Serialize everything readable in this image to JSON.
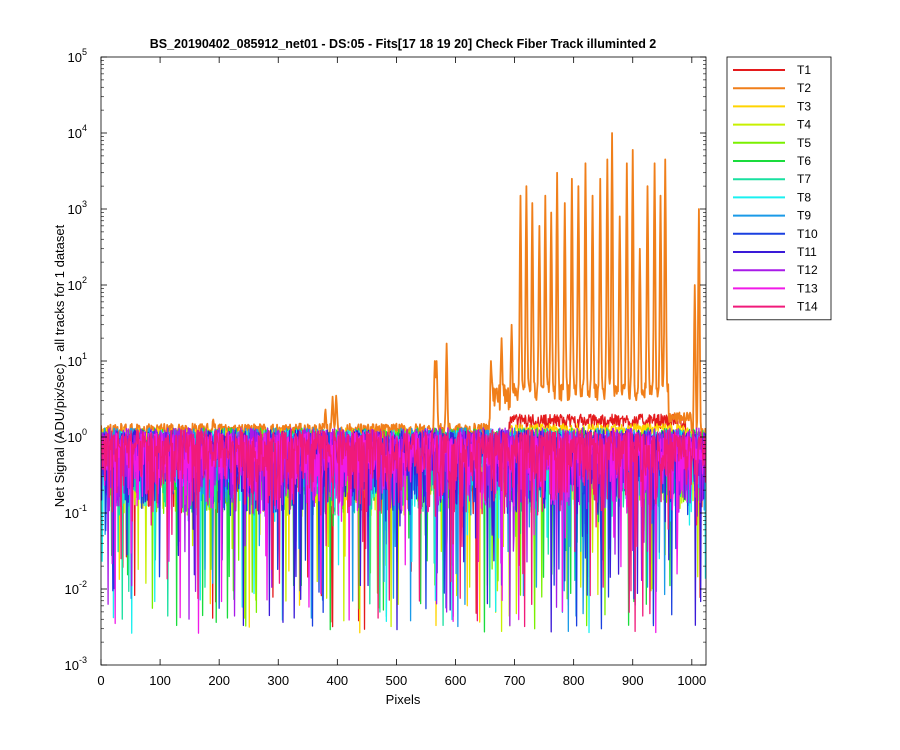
{
  "chart_data": {
    "type": "line",
    "title": "BS_20190402_085912_net01 - DS:05 - Fits[17  18  19  20]   Check Fiber     Track illuminted 2",
    "xlabel": "Pixels",
    "ylabel": "Net Signal (ADU/pix/sec) - all tracks for 1 dataset",
    "xlim": [
      0,
      1024
    ],
    "ylim": [
      0.001,
      100000
    ],
    "y_scale": "log",
    "grid": false,
    "legend_position": "outside-top-right",
    "x_ticks": [
      0,
      100,
      200,
      300,
      400,
      500,
      600,
      700,
      800,
      900,
      1000
    ],
    "y_ticks": [
      {
        "base": "10",
        "exp": "-3",
        "value": 0.001
      },
      {
        "base": "10",
        "exp": "-2",
        "value": 0.01
      },
      {
        "base": "10",
        "exp": "-1",
        "value": 0.1
      },
      {
        "base": "10",
        "exp": "0",
        "value": 1
      },
      {
        "base": "10",
        "exp": "1",
        "value": 10
      },
      {
        "base": "10",
        "exp": "2",
        "value": 100
      },
      {
        "base": "10",
        "exp": "3",
        "value": 1000
      },
      {
        "base": "10",
        "exp": "4",
        "value": 10000
      },
      {
        "base": "10",
        "exp": "5",
        "value": 100000
      }
    ],
    "series": [
      {
        "name": "T1",
        "color": "#e41a1c"
      },
      {
        "name": "T2",
        "color": "#f07f1a",
        "peaks": [
          {
            "x": 190,
            "y": 1.7
          },
          {
            "x": 380,
            "y": 2.3
          },
          {
            "x": 392,
            "y": 3.4
          },
          {
            "x": 398,
            "y": 3.5
          },
          {
            "x": 565,
            "y": 10
          },
          {
            "x": 568,
            "y": 10
          },
          {
            "x": 585,
            "y": 17
          },
          {
            "x": 660,
            "y": 10
          },
          {
            "x": 678,
            "y": 20
          },
          {
            "x": 695,
            "y": 30
          },
          {
            "x": 710,
            "y": 1500
          },
          {
            "x": 720,
            "y": 2000
          },
          {
            "x": 730,
            "y": 1200
          },
          {
            "x": 742,
            "y": 600
          },
          {
            "x": 752,
            "y": 1500
          },
          {
            "x": 762,
            "y": 900
          },
          {
            "x": 772,
            "y": 3000
          },
          {
            "x": 785,
            "y": 1200
          },
          {
            "x": 797,
            "y": 2500
          },
          {
            "x": 808,
            "y": 2000
          },
          {
            "x": 820,
            "y": 4000
          },
          {
            "x": 832,
            "y": 1500
          },
          {
            "x": 845,
            "y": 2500
          },
          {
            "x": 857,
            "y": 4500
          },
          {
            "x": 865,
            "y": 10000
          },
          {
            "x": 878,
            "y": 800
          },
          {
            "x": 890,
            "y": 4000
          },
          {
            "x": 900,
            "y": 6000
          },
          {
            "x": 912,
            "y": 300
          },
          {
            "x": 925,
            "y": 2000
          },
          {
            "x": 937,
            "y": 4000
          },
          {
            "x": 947,
            "y": 1500
          },
          {
            "x": 955,
            "y": 4500
          },
          {
            "x": 1005,
            "y": 100
          },
          {
            "x": 1012,
            "y": 1000
          }
        ]
      },
      {
        "name": "T3",
        "color": "#ffd400"
      },
      {
        "name": "T4",
        "color": "#c8f000"
      },
      {
        "name": "T5",
        "color": "#7af000"
      },
      {
        "name": "T6",
        "color": "#1adc3c"
      },
      {
        "name": "T7",
        "color": "#18e0a0"
      },
      {
        "name": "T8",
        "color": "#1af0f0"
      },
      {
        "name": "T9",
        "color": "#1a9ae8"
      },
      {
        "name": "T10",
        "color": "#1a40e0"
      },
      {
        "name": "T11",
        "color": "#3a1ad8"
      },
      {
        "name": "T12",
        "color": "#a81ae8"
      },
      {
        "name": "T13",
        "color": "#f01ae8"
      },
      {
        "name": "T14",
        "color": "#f01a7a"
      }
    ]
  }
}
